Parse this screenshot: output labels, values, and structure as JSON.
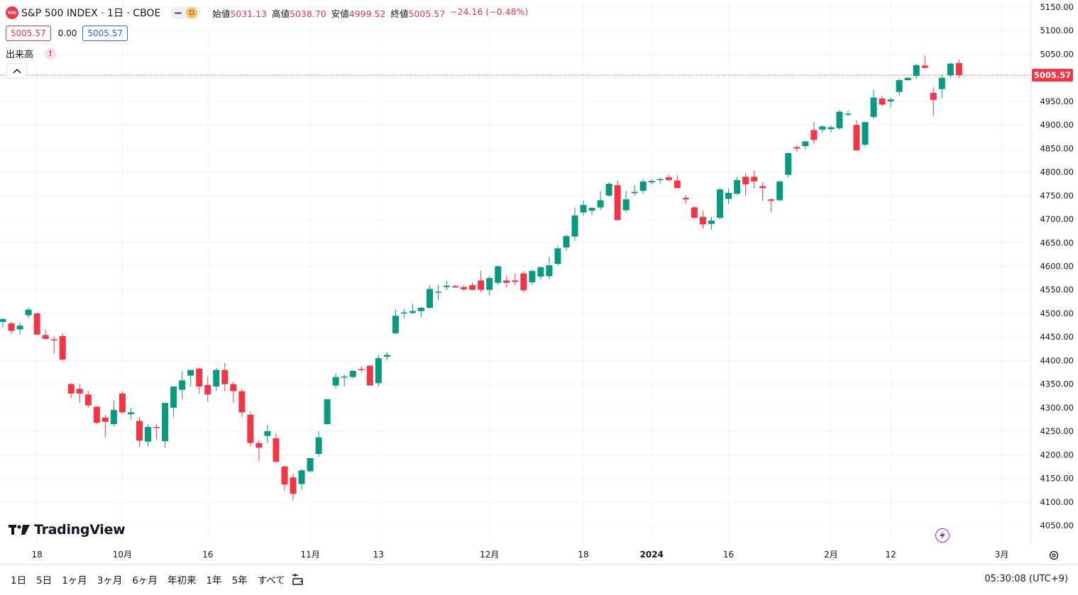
{
  "header": {
    "symbol_badge": "500",
    "title": "S&P 500 INDEX · 1日 · CBOE",
    "interval_badge": "D",
    "ohlc": [
      {
        "label": "始値",
        "value": "5031.13"
      },
      {
        "label": "高値",
        "value": "5038.70"
      },
      {
        "label": "安値",
        "value": "4999.52"
      },
      {
        "label": "終値",
        "value": "5005.57"
      },
      {
        "label": "",
        "value": "−24.16 (−0.48%)"
      }
    ],
    "bid": "5005.57",
    "spread": "0.00",
    "ask": "5005.57"
  },
  "indicator": {
    "label": "出来高",
    "warning": "!"
  },
  "logo_text": "TradingView",
  "last_price_label": "5005.57",
  "colors": {
    "up": "#089981",
    "down": "#f23645",
    "accent": "#2962ff",
    "grid": "#f0f3fa"
  },
  "icons": [
    "collapse-chevron-icon",
    "tradingview-logo-icon",
    "lightning-icon",
    "settings-gear-icon",
    "compare-date-icon"
  ],
  "bottom_bar": {
    "ranges": [
      "1日",
      "5日",
      "1ヶ月",
      "3ヶ月",
      "6ヶ月",
      "年初来",
      "1年",
      "5年",
      "すべて"
    ],
    "clock": "05:30:08 (UTC+9)"
  },
  "chart_data": {
    "type": "candlestick",
    "title": "S&P 500 INDEX · 1日 · CBOE",
    "y_ticks": [
      5150,
      5100,
      5050,
      5000,
      4950,
      4900,
      4850,
      4800,
      4750,
      4700,
      4650,
      4600,
      4550,
      4500,
      4450,
      4400,
      4350,
      4300,
      4250,
      4200,
      4150,
      4100,
      4050
    ],
    "ylim": [
      4010,
      5165
    ],
    "x_ticks": [
      {
        "label": "18",
        "index": 4
      },
      {
        "label": "10月",
        "index": 14
      },
      {
        "label": "16",
        "index": 24
      },
      {
        "label": "11月",
        "index": 36
      },
      {
        "label": "13",
        "index": 44
      },
      {
        "label": "12月",
        "index": 57
      },
      {
        "label": "18",
        "index": 68
      },
      {
        "label": "2024",
        "index": 76,
        "bold": true
      },
      {
        "label": "16",
        "index": 85
      },
      {
        "label": "2月",
        "index": 97
      },
      {
        "label": "12",
        "index": 104
      },
      {
        "label": "3月",
        "index": 117
      }
    ],
    "last_price": 5005.57,
    "grid": true,
    "candles": [
      {
        "o": 4482,
        "h": 4490,
        "l": 4470,
        "c": 4488
      },
      {
        "o": 4479,
        "h": 4483,
        "l": 4456,
        "c": 4463
      },
      {
        "o": 4466,
        "h": 4481,
        "l": 4455,
        "c": 4474
      },
      {
        "o": 4496,
        "h": 4513,
        "l": 4490,
        "c": 4508
      },
      {
        "o": 4500,
        "h": 4502,
        "l": 4454,
        "c": 4455
      },
      {
        "o": 4454,
        "h": 4465,
        "l": 4444,
        "c": 4446
      },
      {
        "o": 4445,
        "h": 4451,
        "l": 4415,
        "c": 4444
      },
      {
        "o": 4452,
        "h": 4458,
        "l": 4400,
        "c": 4402
      },
      {
        "o": 4350,
        "h": 4352,
        "l": 4320,
        "c": 4330
      },
      {
        "o": 4340,
        "h": 4350,
        "l": 4310,
        "c": 4330
      },
      {
        "o": 4328,
        "h": 4336,
        "l": 4300,
        "c": 4305
      },
      {
        "o": 4302,
        "h": 4303,
        "l": 4265,
        "c": 4268
      },
      {
        "o": 4279,
        "h": 4285,
        "l": 4237,
        "c": 4270
      },
      {
        "o": 4265,
        "h": 4316,
        "l": 4260,
        "c": 4295
      },
      {
        "o": 4330,
        "h": 4335,
        "l": 4288,
        "c": 4290
      },
      {
        "o": 4286,
        "h": 4300,
        "l": 4274,
        "c": 4290
      },
      {
        "o": 4272,
        "h": 4280,
        "l": 4217,
        "c": 4230
      },
      {
        "o": 4228,
        "h": 4264,
        "l": 4218,
        "c": 4259
      },
      {
        "o": 4259,
        "h": 4264,
        "l": 4233,
        "c": 4258
      },
      {
        "o": 4229,
        "h": 4310,
        "l": 4215,
        "c": 4310
      },
      {
        "o": 4300,
        "h": 4345,
        "l": 4280,
        "c": 4345
      },
      {
        "o": 4338,
        "h": 4377,
        "l": 4318,
        "c": 4358
      },
      {
        "o": 4368,
        "h": 4380,
        "l": 4345,
        "c": 4380
      },
      {
        "o": 4383,
        "h": 4385,
        "l": 4330,
        "c": 4345
      },
      {
        "o": 4348,
        "h": 4365,
        "l": 4313,
        "c": 4328
      },
      {
        "o": 4345,
        "h": 4385,
        "l": 4335,
        "c": 4380
      },
      {
        "o": 4380,
        "h": 4395,
        "l": 4335,
        "c": 4350
      },
      {
        "o": 4350,
        "h": 4355,
        "l": 4310,
        "c": 4335
      },
      {
        "o": 4335,
        "h": 4340,
        "l": 4280,
        "c": 4290
      },
      {
        "o": 4285,
        "h": 4292,
        "l": 4218,
        "c": 4225
      },
      {
        "o": 4225,
        "h": 4232,
        "l": 4187,
        "c": 4215
      },
      {
        "o": 4240,
        "h": 4264,
        "l": 4225,
        "c": 4250
      },
      {
        "o": 4235,
        "h": 4245,
        "l": 4185,
        "c": 4185
      },
      {
        "o": 4175,
        "h": 4178,
        "l": 4124,
        "c": 4137
      },
      {
        "o": 4152,
        "h": 4160,
        "l": 4103,
        "c": 4117
      },
      {
        "o": 4138,
        "h": 4170,
        "l": 4126,
        "c": 4167
      },
      {
        "o": 4165,
        "h": 4193,
        "l": 4162,
        "c": 4193
      },
      {
        "o": 4202,
        "h": 4250,
        "l": 4196,
        "c": 4237
      },
      {
        "o": 4265,
        "h": 4318,
        "l": 4265,
        "c": 4318
      },
      {
        "o": 4347,
        "h": 4373,
        "l": 4340,
        "c": 4365
      },
      {
        "o": 4365,
        "h": 4370,
        "l": 4345,
        "c": 4366
      },
      {
        "o": 4365,
        "h": 4380,
        "l": 4362,
        "c": 4378
      },
      {
        "o": 4382,
        "h": 4388,
        "l": 4375,
        "c": 4380
      },
      {
        "o": 4389,
        "h": 4390,
        "l": 4350,
        "c": 4347
      },
      {
        "o": 4352,
        "h": 4412,
        "l": 4345,
        "c": 4405
      },
      {
        "o": 4408,
        "h": 4418,
        "l": 4400,
        "c": 4412
      },
      {
        "o": 4458,
        "h": 4508,
        "l": 4455,
        "c": 4495
      },
      {
        "o": 4502,
        "h": 4510,
        "l": 4490,
        "c": 4502
      },
      {
        "o": 4501,
        "h": 4520,
        "l": 4499,
        "c": 4505
      },
      {
        "o": 4505,
        "h": 4513,
        "l": 4492,
        "c": 4512
      },
      {
        "o": 4512,
        "h": 4560,
        "l": 4510,
        "c": 4552
      },
      {
        "o": 4545,
        "h": 4560,
        "l": 4529,
        "c": 4546
      },
      {
        "o": 4556,
        "h": 4569,
        "l": 4550,
        "c": 4559
      },
      {
        "o": 4558,
        "h": 4560,
        "l": 4555,
        "c": 4555
      },
      {
        "o": 4556,
        "h": 4560,
        "l": 4547,
        "c": 4551
      },
      {
        "o": 4560,
        "h": 4566,
        "l": 4549,
        "c": 4550
      },
      {
        "o": 4570,
        "h": 4590,
        "l": 4545,
        "c": 4550
      },
      {
        "o": 4550,
        "h": 4580,
        "l": 4538,
        "c": 4575
      },
      {
        "o": 4565,
        "h": 4602,
        "l": 4560,
        "c": 4600
      },
      {
        "o": 4570,
        "h": 4580,
        "l": 4555,
        "c": 4565
      },
      {
        "o": 4570,
        "h": 4585,
        "l": 4560,
        "c": 4567
      },
      {
        "o": 4585,
        "h": 4590,
        "l": 4545,
        "c": 4549
      },
      {
        "o": 4566,
        "h": 4593,
        "l": 4560,
        "c": 4590
      },
      {
        "o": 4578,
        "h": 4600,
        "l": 4572,
        "c": 4598
      },
      {
        "o": 4579,
        "h": 4620,
        "l": 4573,
        "c": 4602
      },
      {
        "o": 4605,
        "h": 4643,
        "l": 4602,
        "c": 4638
      },
      {
        "o": 4640,
        "h": 4668,
        "l": 4633,
        "c": 4664
      },
      {
        "o": 4663,
        "h": 4725,
        "l": 4654,
        "c": 4708
      },
      {
        "o": 4714,
        "h": 4740,
        "l": 4707,
        "c": 4730
      },
      {
        "o": 4718,
        "h": 4725,
        "l": 4708,
        "c": 4724
      },
      {
        "o": 4725,
        "h": 4760,
        "l": 4719,
        "c": 4740
      },
      {
        "o": 4750,
        "h": 4778,
        "l": 4748,
        "c": 4775
      },
      {
        "o": 4772,
        "h": 4782,
        "l": 4697,
        "c": 4698
      },
      {
        "o": 4719,
        "h": 4760,
        "l": 4715,
        "c": 4742
      },
      {
        "o": 4755,
        "h": 4772,
        "l": 4750,
        "c": 4758
      },
      {
        "o": 4760,
        "h": 4785,
        "l": 4754,
        "c": 4780
      },
      {
        "o": 4778,
        "h": 4784,
        "l": 4774,
        "c": 4781
      },
      {
        "o": 4783,
        "h": 4787,
        "l": 4775,
        "c": 4785
      },
      {
        "o": 4789,
        "h": 4794,
        "l": 4780,
        "c": 4783
      },
      {
        "o": 4782,
        "h": 4793,
        "l": 4775,
        "c": 4766
      },
      {
        "o": 4745,
        "h": 4750,
        "l": 4733,
        "c": 4742
      },
      {
        "o": 4725,
        "h": 4728,
        "l": 4700,
        "c": 4703
      },
      {
        "o": 4705,
        "h": 4718,
        "l": 4680,
        "c": 4689
      },
      {
        "o": 4690,
        "h": 4705,
        "l": 4678,
        "c": 4697
      },
      {
        "o": 4703,
        "h": 4766,
        "l": 4700,
        "c": 4763
      },
      {
        "o": 4743,
        "h": 4765,
        "l": 4732,
        "c": 4756
      },
      {
        "o": 4754,
        "h": 4790,
        "l": 4752,
        "c": 4783
      },
      {
        "o": 4790,
        "h": 4797,
        "l": 4750,
        "c": 4774
      },
      {
        "o": 4790,
        "h": 4803,
        "l": 4765,
        "c": 4780
      },
      {
        "o": 4770,
        "h": 4778,
        "l": 4739,
        "c": 4766
      },
      {
        "o": 4742,
        "h": 4743,
        "l": 4715,
        "c": 4739
      },
      {
        "o": 4740,
        "h": 4782,
        "l": 4739,
        "c": 4780
      },
      {
        "o": 4794,
        "h": 4842,
        "l": 4788,
        "c": 4840
      },
      {
        "o": 4853,
        "h": 4856,
        "l": 4842,
        "c": 4850
      },
      {
        "o": 4855,
        "h": 4866,
        "l": 4848,
        "c": 4865
      },
      {
        "o": 4889,
        "h": 4906,
        "l": 4860,
        "c": 4868
      },
      {
        "o": 4890,
        "h": 4898,
        "l": 4884,
        "c": 4897
      },
      {
        "o": 4891,
        "h": 4899,
        "l": 4885,
        "c": 4895
      },
      {
        "o": 4893,
        "h": 4932,
        "l": 4890,
        "c": 4928
      },
      {
        "o": 4924,
        "h": 4931,
        "l": 4918,
        "c": 4924
      },
      {
        "o": 4900,
        "h": 4910,
        "l": 4845,
        "c": 4846
      },
      {
        "o": 4858,
        "h": 4906,
        "l": 4853,
        "c": 4906
      },
      {
        "o": 4917,
        "h": 4975,
        "l": 4912,
        "c": 4958
      },
      {
        "o": 4956,
        "h": 4962,
        "l": 4940,
        "c": 4943
      },
      {
        "o": 4950,
        "h": 4958,
        "l": 4937,
        "c": 4954
      },
      {
        "o": 4970,
        "h": 4998,
        "l": 4962,
        "c": 4995
      },
      {
        "o": 4995,
        "h": 5000,
        "l": 4995,
        "c": 5000
      },
      {
        "o": 5004,
        "h": 5030,
        "l": 4998,
        "c": 5027
      },
      {
        "o": 5026,
        "h": 5048,
        "l": 5019,
        "c": 5021
      },
      {
        "o": 4968,
        "h": 4980,
        "l": 4920,
        "c": 4953
      },
      {
        "o": 4976,
        "h": 5007,
        "l": 4957,
        "c": 5000
      },
      {
        "o": 5005,
        "h": 5032,
        "l": 5000,
        "c": 5030
      },
      {
        "o": 5031.13,
        "h": 5038.7,
        "l": 4999.52,
        "c": 5005.57
      }
    ]
  }
}
